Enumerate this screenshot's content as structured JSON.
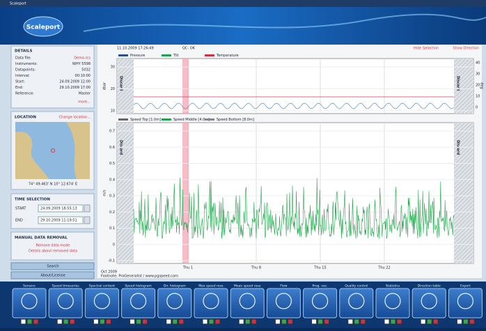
{
  "window_title": "Scaleport",
  "logo": "Scaleport",
  "details": {
    "heading": "DETAILS",
    "rows": [
      [
        "Data file:",
        "Demo.rcs"
      ],
      [
        "Instruments:",
        "WHY 5598"
      ],
      [
        "Datapoints:",
        "5032"
      ],
      [
        "Interval:",
        "00:10:00"
      ],
      [
        "Start:",
        "24.09.2009 12:00"
      ],
      [
        "End:",
        "29.10.2009 17:00"
      ],
      [
        "Reference:",
        "Master"
      ]
    ],
    "link": "more..."
  },
  "location": {
    "heading": "LOCATION",
    "link": "Change location...",
    "coords": "74° 49.463' N   10° 12.674' E"
  },
  "time_selection": {
    "heading": "TIME SELECTION",
    "start_label": "START",
    "start": "24.09.2009 18:55:13",
    "end_label": "END",
    "end": "29.10.2009 11:19:51"
  },
  "manual_removal": {
    "heading": "MANUAL DATA REMOVAL",
    "links": [
      "Remove data mode",
      "Details about removed data"
    ]
  },
  "buttons": [
    "Search",
    "About/License"
  ],
  "chart_header": {
    "timestamp": "11.10.2009 17:26:49",
    "qc": "QC: OK",
    "links": [
      "Hide Selection",
      "Show Direction"
    ]
  },
  "top_chart": {
    "legend": [
      "Pressure",
      "Tilt",
      "Temperature"
    ],
    "y_label": "dbar",
    "y2_label": "deg",
    "yticks": [
      "30",
      "20",
      "10"
    ],
    "y2ticks": [
      "40",
      "30",
      "20",
      "10",
      "0"
    ],
    "flags": [
      "Discard",
      "Discard"
    ]
  },
  "speed_chart": {
    "legend": [
      "Speed Top [1.0m]",
      "Speed Middle [4.0m]",
      "Speed Bottom [8.0m]"
    ],
    "y_label": "m/s",
    "yticks": [
      "0.7",
      "0.6",
      "0.5",
      "0.4",
      "0.3",
      "0.2",
      "0.1",
      "0",
      "-0.1"
    ],
    "flags": [
      "Discard",
      "Discard"
    ]
  },
  "x_axis": {
    "ticks": [
      "Thu 1",
      "Thu 8",
      "Thu 15",
      "Thu 22"
    ],
    "month": "Oct 2009",
    "footnote": "Footnote: ProGeneralist / www.pgspeed.com"
  },
  "toolbar": [
    "Sensors",
    "Speed timeseries",
    "Spectral content",
    "Speed histogram",
    "Dir. histogram",
    "Max speed rose",
    "Mean speed rose",
    "Flow",
    "Prog. vec.",
    "Quality control",
    "Statistics",
    "Direction table",
    "Export"
  ]
}
